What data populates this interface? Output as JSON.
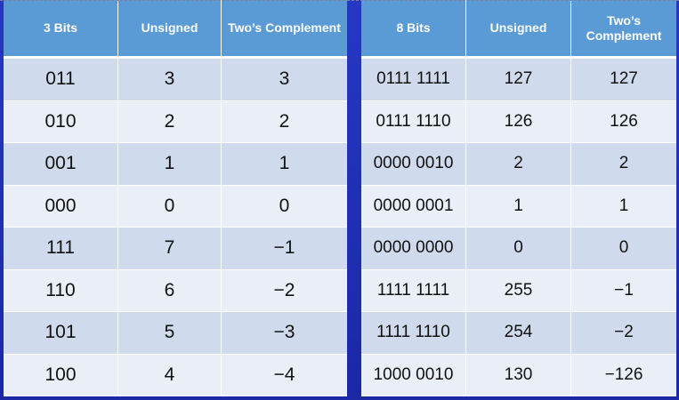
{
  "left_table": {
    "headers": [
      "3 Bits",
      "Unsigned",
      "Two’s Complement"
    ],
    "rows": [
      [
        "011",
        "3",
        "3"
      ],
      [
        "010",
        "2",
        "2"
      ],
      [
        "001",
        "1",
        "1"
      ],
      [
        "000",
        "0",
        "0"
      ],
      [
        "111",
        "7",
        "−1"
      ],
      [
        "110",
        "6",
        "−2"
      ],
      [
        "101",
        "5",
        "−3"
      ],
      [
        "100",
        "4",
        "−4"
      ]
    ]
  },
  "right_table": {
    "headers": [
      "8 Bits",
      "Unsigned",
      "Two’s Complement"
    ],
    "rows": [
      [
        "0111 1111",
        "127",
        "127"
      ],
      [
        "0111 1110",
        "126",
        "126"
      ],
      [
        "0000 0010",
        "2",
        "2"
      ],
      [
        "0000 0001",
        "1",
        "1"
      ],
      [
        "0000 0000",
        "0",
        "0"
      ],
      [
        "1111 1111",
        "255",
        "−1"
      ],
      [
        "1111 1110",
        "254",
        "−2"
      ],
      [
        "1000 0010",
        "130",
        "−126"
      ]
    ]
  },
  "colors": {
    "header_bg": "#5b9bd5",
    "row_odd": "#cfdbec",
    "row_even": "#e9eef7",
    "frame_bg": "#1f2fae"
  }
}
